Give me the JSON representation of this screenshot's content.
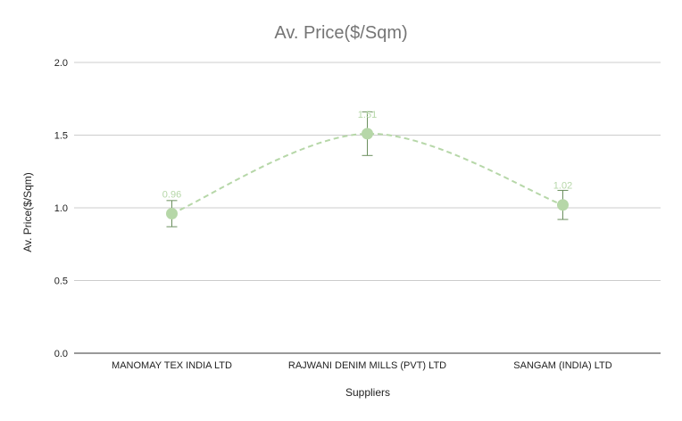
{
  "chart_data": {
    "type": "line",
    "title": "Av. Price($/Sqm)",
    "xlabel": "Suppliers",
    "ylabel": "Av. Price($/Sqm)",
    "ylim": [
      0,
      2.0
    ],
    "yticks": [
      "0.0",
      "0.5",
      "1.0",
      "1.5",
      "2.0"
    ],
    "grid": true,
    "categories": [
      "MANOMAY TEX INDIA LTD",
      "RAJWANI DENIM MILLS (PVT) LTD",
      "SANGAM (INDIA) LTD"
    ],
    "series": [
      {
        "values": [
          0.96,
          1.51,
          1.02
        ],
        "labels": [
          "0.96",
          "1.51",
          "1.02"
        ],
        "error_low": [
          0.87,
          1.36,
          0.92
        ],
        "error_high": [
          1.05,
          1.66,
          1.12
        ],
        "color": "#b6d7a8",
        "line_style": "dashed",
        "smooth": true
      }
    ],
    "colors": {
      "grid": "#cccccc",
      "axis": "#333333",
      "error_bar": "#6b8f5e",
      "title": "#757575"
    }
  }
}
